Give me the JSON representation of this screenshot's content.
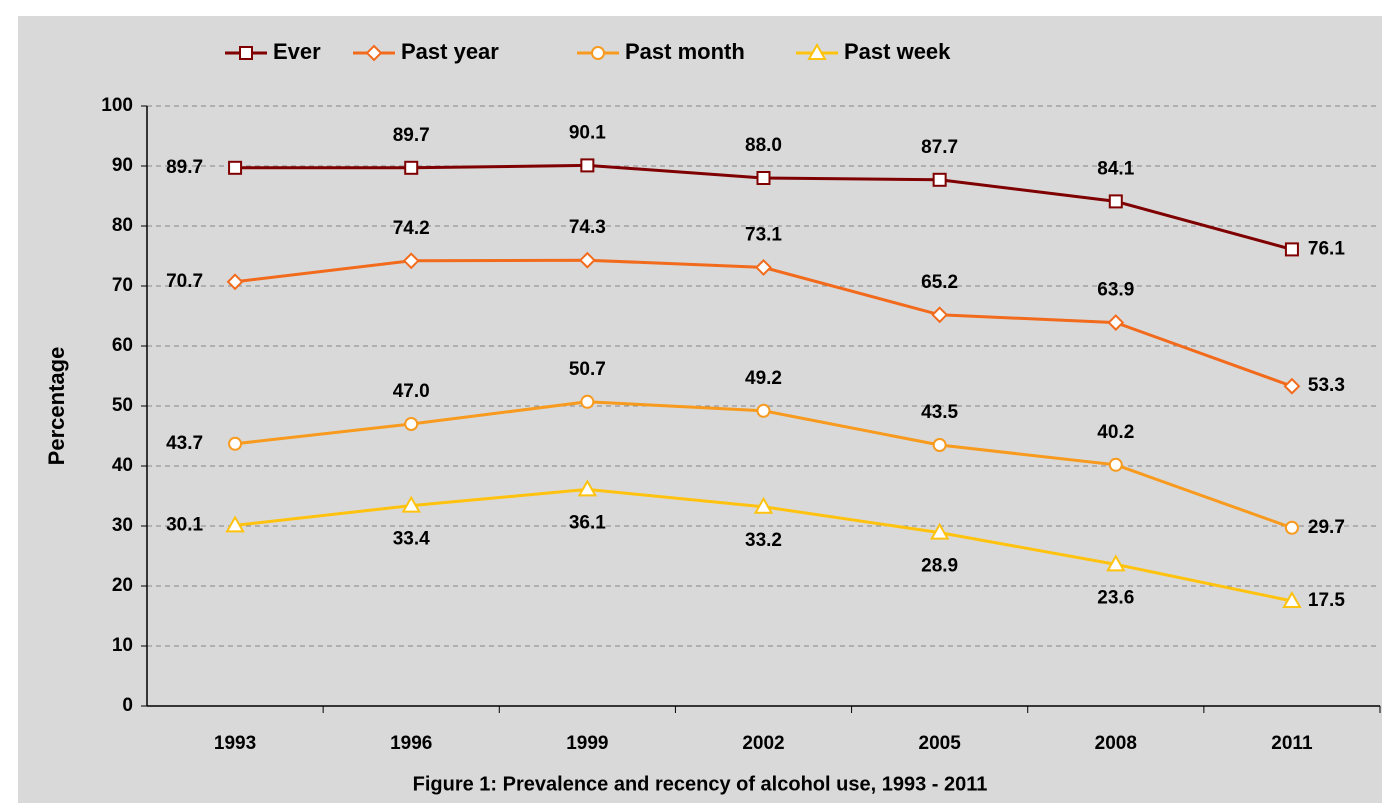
{
  "chart_data": {
    "type": "line",
    "caption": "Figure 1: Prevalence and recency of alcohol use, 1993 - 2011",
    "y_label": "Percentage",
    "categories": [
      "1993",
      "1996",
      "1999",
      "2002",
      "2005",
      "2008",
      "2011"
    ],
    "ylim": [
      0,
      100
    ],
    "yticks": [
      0,
      10,
      20,
      30,
      40,
      50,
      60,
      70,
      80,
      90,
      100
    ],
    "grid": true,
    "legend": "top",
    "series": [
      {
        "name": "Ever",
        "color": "#7f0000",
        "marker": "square",
        "values": [
          89.7,
          89.7,
          90.1,
          88.0,
          87.7,
          84.1,
          76.1
        ],
        "value_labels": [
          "89.7",
          "89.7",
          "90.1",
          "88.0",
          "87.7",
          "84.1",
          "76.1"
        ]
      },
      {
        "name": "Past year",
        "color": "#f26a1b",
        "marker": "diamond",
        "values": [
          70.7,
          74.2,
          74.3,
          73.1,
          65.2,
          63.9,
          53.3
        ],
        "value_labels": [
          "70.7",
          "74.2",
          "74.3",
          "73.1",
          "65.2",
          "63.9",
          "53.3"
        ]
      },
      {
        "name": "Past month",
        "color": "#f79a1e",
        "marker": "circle",
        "values": [
          43.7,
          47.0,
          50.7,
          49.2,
          43.5,
          40.2,
          29.7
        ],
        "value_labels": [
          "43.7",
          "47.0",
          "50.7",
          "49.2",
          "43.5",
          "40.2",
          "29.7"
        ]
      },
      {
        "name": "Past week",
        "color": "#ffc20e",
        "marker": "triangle",
        "values": [
          30.1,
          33.4,
          36.1,
          33.2,
          28.9,
          23.6,
          17.5
        ],
        "value_labels": [
          "30.1",
          "33.4",
          "36.1",
          "33.2",
          "28.9",
          "23.6",
          "17.5"
        ]
      }
    ]
  }
}
